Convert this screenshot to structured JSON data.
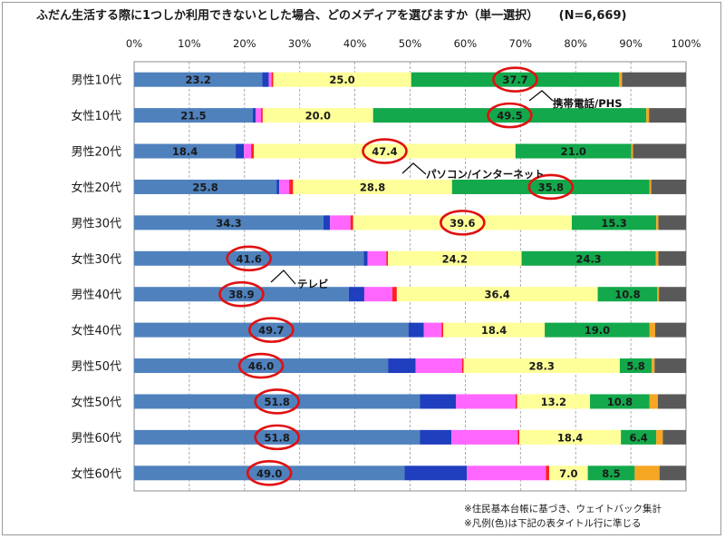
{
  "title": "ふだん生活する際に1つしか利用できないとした場合、どのメディアを選びますか（単一選択）",
  "sample": "(N=6,669)",
  "notes": [
    "※住民基本台帳に基づき、ウェイトバック集計",
    "※凡例(色)は下記の表タイトル行に準じる"
  ],
  "callouts": [
    "携帯電話/PHS",
    "パソコン/インターネット",
    "テレビ"
  ],
  "colors": {
    "tv": "#4f81bd",
    "radio": "#1f3fbf",
    "magazine": "#ff66ff",
    "newspaper": "#ff2020",
    "pc": "#ffff99",
    "mobile": "#13a84b",
    "other1": "#f5a623",
    "other2": "#595959",
    "circle": "#e01010"
  },
  "chart_data": {
    "type": "bar",
    "orientation": "horizontal",
    "stacked": true,
    "percent": true,
    "xlim": [
      0,
      100
    ],
    "xticks": [
      "0%",
      "10%",
      "20%",
      "30%",
      "40%",
      "50%",
      "60%",
      "70%",
      "80%",
      "90%",
      "100%"
    ],
    "grid": true,
    "categories": [
      "男性10代",
      "女性10代",
      "男性20代",
      "女性20代",
      "男性30代",
      "女性30代",
      "男性40代",
      "女性40代",
      "男性50代",
      "女性50代",
      "男性60代",
      "女性60代"
    ],
    "series": [
      {
        "values": [
          23.2,
          21.5,
          18.4,
          25.8,
          34.3,
          41.6,
          38.9,
          49.7,
          46.0,
          51.8,
          51.8,
          49.0
        ]
      },
      {
        "values": [
          1.2,
          0.5,
          1.5,
          0.5,
          1.2,
          0.7,
          2.8,
          2.8,
          5.0,
          6.5,
          5.7,
          11.3
        ]
      },
      {
        "values": [
          0.5,
          1.0,
          1.3,
          1.8,
          3.7,
          3.4,
          5.1,
          3.2,
          8.4,
          10.8,
          12.0,
          14.3
        ]
      },
      {
        "values": [
          0.3,
          0.3,
          0.5,
          0.7,
          0.5,
          0.3,
          0.8,
          0.3,
          0.3,
          0.3,
          0.3,
          0.6
        ]
      },
      {
        "values": [
          25.0,
          20.0,
          47.4,
          28.8,
          39.6,
          24.2,
          36.4,
          18.4,
          28.3,
          13.2,
          18.4,
          7.0
        ]
      },
      {
        "values": [
          37.7,
          49.5,
          21.0,
          35.8,
          15.3,
          24.3,
          10.8,
          19.0,
          5.8,
          10.8,
          6.4,
          8.5
        ]
      },
      {
        "values": [
          0.5,
          0.5,
          0.3,
          0.3,
          0.4,
          0.5,
          0.3,
          1.0,
          0.5,
          1.5,
          1.2,
          4.5
        ]
      },
      {
        "values": [
          11.6,
          6.7,
          9.6,
          6.3,
          5.0,
          5.0,
          4.9,
          5.6,
          5.7,
          5.1,
          4.2,
          4.8
        ]
      }
    ],
    "data_labels": [
      [
        "23.2",
        "25.0",
        "37.7"
      ],
      [
        "21.5",
        "20.0",
        "49.5"
      ],
      [
        "18.4",
        "47.4",
        "21.0"
      ],
      [
        "25.8",
        "28.8",
        "35.8"
      ],
      [
        "34.3",
        "39.6",
        "15.3"
      ],
      [
        "41.6",
        "24.2",
        "24.3"
      ],
      [
        "38.9",
        "36.4",
        "10.8"
      ],
      [
        "49.7",
        "18.4",
        "19.0"
      ],
      [
        "46.0",
        "28.3",
        "5.8"
      ],
      [
        "51.8",
        "13.2",
        "10.8"
      ],
      [
        "51.8",
        "18.4",
        "6.4"
      ],
      [
        "49.0",
        "7.0",
        "8.5"
      ]
    ],
    "highlighted": [
      {
        "row": 0,
        "series": 5
      },
      {
        "row": 1,
        "series": 5
      },
      {
        "row": 2,
        "series": 4
      },
      {
        "row": 3,
        "series": 5
      },
      {
        "row": 4,
        "series": 4
      },
      {
        "row": 5,
        "series": 0
      },
      {
        "row": 6,
        "series": 0
      },
      {
        "row": 7,
        "series": 0
      },
      {
        "row": 8,
        "series": 0
      },
      {
        "row": 9,
        "series": 0
      },
      {
        "row": 10,
        "series": 0
      },
      {
        "row": 11,
        "series": 0
      }
    ]
  }
}
